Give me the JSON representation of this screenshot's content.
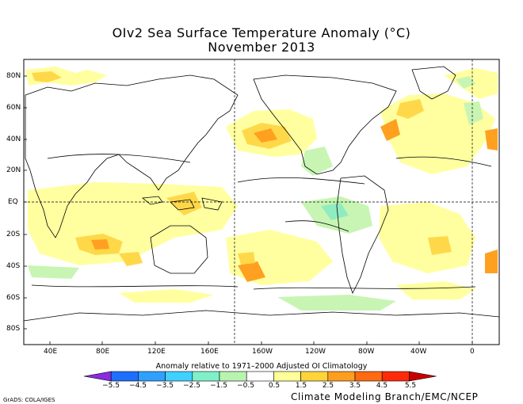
{
  "title": "OIv2 Sea Surface Temperature Anomaly (°C)",
  "subtitle": "November 2013",
  "lat_labels": [
    "80N",
    "60N",
    "40N",
    "20N",
    "EQ",
    "20S",
    "40S",
    "60S",
    "80S"
  ],
  "lon_labels": [
    "40E",
    "80E",
    "120E",
    "160E",
    "160W",
    "120W",
    "80W",
    "40W",
    "0"
  ],
  "colorbar": {
    "note": "Anomaly relative to 1971–2000 Adjusted OI Climatology",
    "ticks": [
      "−5.5",
      "−4.5",
      "−3.5",
      "−2.5",
      "−1.5",
      "−0.5",
      "0.5",
      "1.5",
      "2.5",
      "3.5",
      "4.5",
      "5.5"
    ],
    "colors": [
      "#8a2be2",
      "#1f6fff",
      "#2fa0ff",
      "#40d0ff",
      "#7ff0c8",
      "#b8f4b0",
      "#ffffff",
      "#ffff99",
      "#ffd33a",
      "#ff9d1f",
      "#ff6a10",
      "#ff2a0a",
      "#c80000"
    ]
  },
  "credit": "Climate Modeling Branch/EMC/NCEP",
  "grads": "GrADS: COLA/IGES",
  "colors": {
    "positive_small": "#ffffa0",
    "positive_med": "#ffd84a",
    "positive_large": "#ffa020",
    "negative_small": "#c8f5b4",
    "negative_med": "#90ecc0",
    "land_contour": "#000000"
  }
}
